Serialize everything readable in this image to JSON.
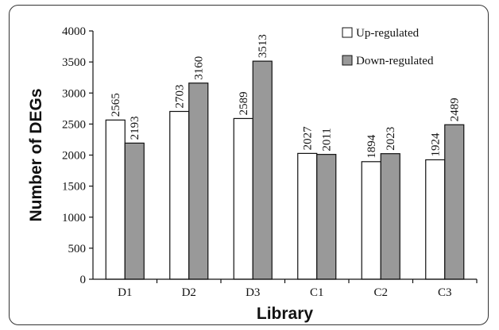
{
  "chart_data": {
    "type": "bar",
    "categories": [
      "D1",
      "D2",
      "D3",
      "C1",
      "C2",
      "C3"
    ],
    "series": [
      {
        "name": "Up-regulated",
        "values": [
          2565,
          2703,
          2589,
          2027,
          1894,
          1924
        ],
        "color": "#ffffff"
      },
      {
        "name": "Down-regulated",
        "values": [
          2193,
          3160,
          3513,
          2011,
          2023,
          2489
        ],
        "color": "#999999"
      }
    ],
    "xlabel": "Library",
    "ylabel": "Number of DEGs",
    "ylim": [
      0,
      4000
    ],
    "yticks": [
      0,
      500,
      1000,
      1500,
      2000,
      2500,
      3000,
      3500,
      4000
    ],
    "grid": false,
    "legend": "top-right"
  }
}
